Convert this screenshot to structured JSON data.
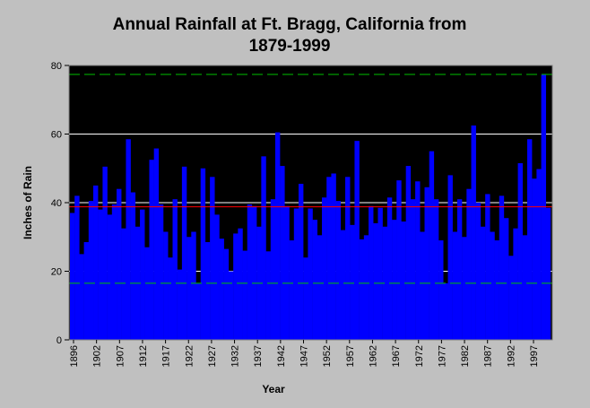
{
  "chart_data": {
    "type": "bar",
    "title_line1": "Annual Rainfall at Ft. Bragg, California from",
    "title_line2": "1879-1999",
    "xlabel": "Year",
    "ylabel": "Inches of Rain",
    "ylim": [
      0,
      80
    ],
    "yticks": [
      0,
      20,
      40,
      60,
      80
    ],
    "xticks": [
      "1896",
      "1902",
      "1907",
      "1912",
      "1917",
      "1922",
      "1927",
      "1932",
      "1937",
      "1942",
      "1947",
      "1952",
      "1957",
      "1962",
      "1967",
      "1972",
      "1977",
      "1982",
      "1987",
      "1992",
      "1997"
    ],
    "grid": "horizontal",
    "bar_color": "#0000ff",
    "plot_background": "#000000",
    "reference_lines": [
      {
        "value": 77.4,
        "style": "dashed",
        "color": "#00c000"
      },
      {
        "value": 38.8,
        "style": "solid",
        "color": "#ff0000"
      },
      {
        "value": 16.5,
        "style": "dashed",
        "color": "#00c000"
      }
    ],
    "values": [
      37,
      42,
      25,
      28.5,
      40.5,
      45,
      38,
      50.5,
      36.5,
      39.5,
      44,
      32.5,
      58.5,
      43,
      33,
      38,
      27,
      52.5,
      55.8,
      39.5,
      31.5,
      24,
      41,
      20.5,
      50.5,
      30,
      31.5,
      16.5,
      50,
      28.5,
      47.5,
      36.5,
      29.5,
      26.5,
      20,
      31,
      32.5,
      26,
      39.5,
      39,
      33,
      53.5,
      25.8,
      41,
      60.5,
      50.7,
      39,
      29,
      38.3,
      45.5,
      24,
      38.3,
      35,
      30.5,
      41.5,
      47.5,
      48.5,
      40.5,
      32,
      47.5,
      33.5,
      58,
      29.3,
      30.5,
      39,
      34,
      38.5,
      33,
      41.5,
      35,
      46.5,
      34.5,
      50.7,
      41,
      46.2,
      31.5,
      44.5,
      55,
      41,
      29,
      16.5,
      48,
      31.5,
      41,
      30,
      44,
      62.5,
      40,
      33,
      42.5,
      31.5,
      29,
      42,
      35.5,
      24.5,
      32.5,
      51.5,
      30.5,
      58.5,
      47,
      49.8,
      77.3,
      38.5
    ]
  }
}
